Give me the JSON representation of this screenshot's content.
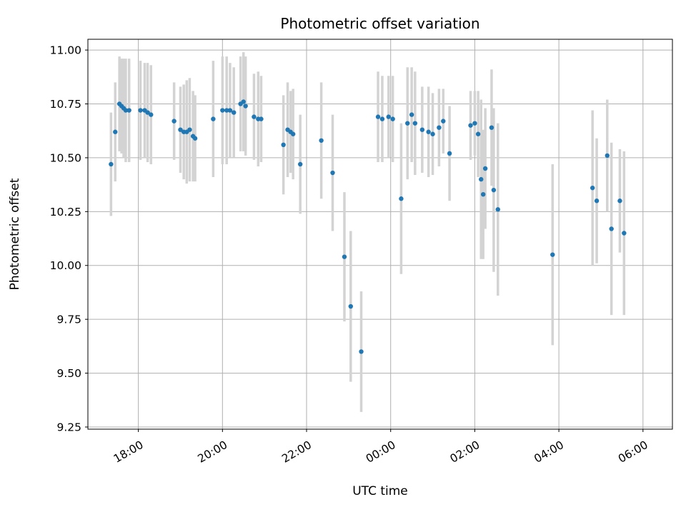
{
  "figure": {
    "title": "Photometric offset variation",
    "xlabel": "UTC time",
    "ylabel": "Photometric offset"
  },
  "style": {
    "background": "#ffffff",
    "grid_color": "#b0b0b0",
    "axis_color": "#000000",
    "marker_color": "#1f77b4",
    "errorbar_color": "#d3d3d3"
  },
  "chart_data": {
    "type": "scatter",
    "title": "Photometric offset variation",
    "xlabel": "UTC time",
    "ylabel": "Photometric offset",
    "grid": true,
    "legend": "none",
    "xlim": [
      16.8,
      30.7
    ],
    "ylim": [
      9.24,
      11.05
    ],
    "xticks": {
      "values": [
        18,
        20,
        22,
        24,
        26,
        28,
        30
      ],
      "labels": [
        "18:00",
        "20:00",
        "22:00",
        "00:00",
        "02:00",
        "04:00",
        "06:00"
      ],
      "rotation": 30
    },
    "yticks": {
      "values": [
        9.25,
        9.5,
        9.75,
        10.0,
        10.25,
        10.5,
        10.75,
        11.0
      ],
      "labels": [
        "9.25",
        "9.50",
        "9.75",
        "10.00",
        "10.25",
        "10.50",
        "10.75",
        "11.00"
      ]
    },
    "series": [
      {
        "name": "photometric offset vs UTC time",
        "marker": "circle",
        "marker_color": "#1f77b4",
        "errorbar_color": "#d3d3d3",
        "x": [
          17.35,
          17.45,
          17.55,
          17.6,
          17.65,
          17.7,
          17.78,
          18.05,
          18.15,
          18.22,
          18.3,
          18.85,
          19.0,
          19.08,
          19.15,
          19.22,
          19.3,
          19.35,
          19.78,
          20.0,
          20.1,
          20.18,
          20.27,
          20.43,
          20.5,
          20.55,
          20.75,
          20.85,
          20.92,
          21.45,
          21.55,
          21.62,
          21.68,
          21.85,
          22.35,
          22.62,
          22.9,
          23.05,
          23.3,
          23.7,
          23.8,
          23.95,
          24.05,
          24.25,
          24.4,
          24.5,
          24.58,
          24.75,
          24.9,
          25.0,
          25.15,
          25.25,
          25.4,
          25.9,
          26.0,
          26.08,
          26.15,
          26.2,
          26.25,
          26.4,
          26.45,
          26.55,
          27.85,
          28.8,
          28.9,
          29.15,
          29.25,
          29.45,
          29.55
        ],
        "y": [
          10.47,
          10.62,
          10.75,
          10.74,
          10.73,
          10.72,
          10.72,
          10.72,
          10.72,
          10.71,
          10.7,
          10.67,
          10.63,
          10.62,
          10.62,
          10.63,
          10.6,
          10.59,
          10.68,
          10.72,
          10.72,
          10.72,
          10.71,
          10.75,
          10.76,
          10.74,
          10.69,
          10.68,
          10.68,
          10.56,
          10.63,
          10.62,
          10.61,
          10.47,
          10.58,
          10.43,
          10.04,
          9.81,
          9.6,
          10.69,
          10.68,
          10.69,
          10.68,
          10.31,
          10.66,
          10.7,
          10.66,
          10.63,
          10.62,
          10.61,
          10.64,
          10.67,
          10.52,
          10.65,
          10.66,
          10.61,
          10.4,
          10.33,
          10.45,
          10.64,
          10.35,
          10.26,
          10.05,
          10.36,
          10.3,
          10.51,
          10.17,
          10.3,
          10.15
        ],
        "yerr": [
          0.24,
          0.23,
          0.22,
          0.22,
          0.23,
          0.24,
          0.24,
          0.23,
          0.22,
          0.23,
          0.23,
          0.18,
          0.2,
          0.22,
          0.24,
          0.24,
          0.21,
          0.2,
          0.27,
          0.25,
          0.25,
          0.22,
          0.21,
          0.22,
          0.23,
          0.23,
          0.2,
          0.22,
          0.2,
          0.23,
          0.22,
          0.19,
          0.21,
          0.23,
          0.27,
          0.27,
          0.3,
          0.35,
          0.28,
          0.21,
          0.2,
          0.19,
          0.2,
          0.35,
          0.26,
          0.22,
          0.24,
          0.2,
          0.21,
          0.19,
          0.18,
          0.15,
          0.22,
          0.16,
          0.15,
          0.2,
          0.37,
          0.3,
          0.28,
          0.27,
          0.38,
          0.4,
          0.42,
          0.36,
          0.29,
          0.26,
          0.4,
          0.24,
          0.38
        ]
      }
    ]
  }
}
